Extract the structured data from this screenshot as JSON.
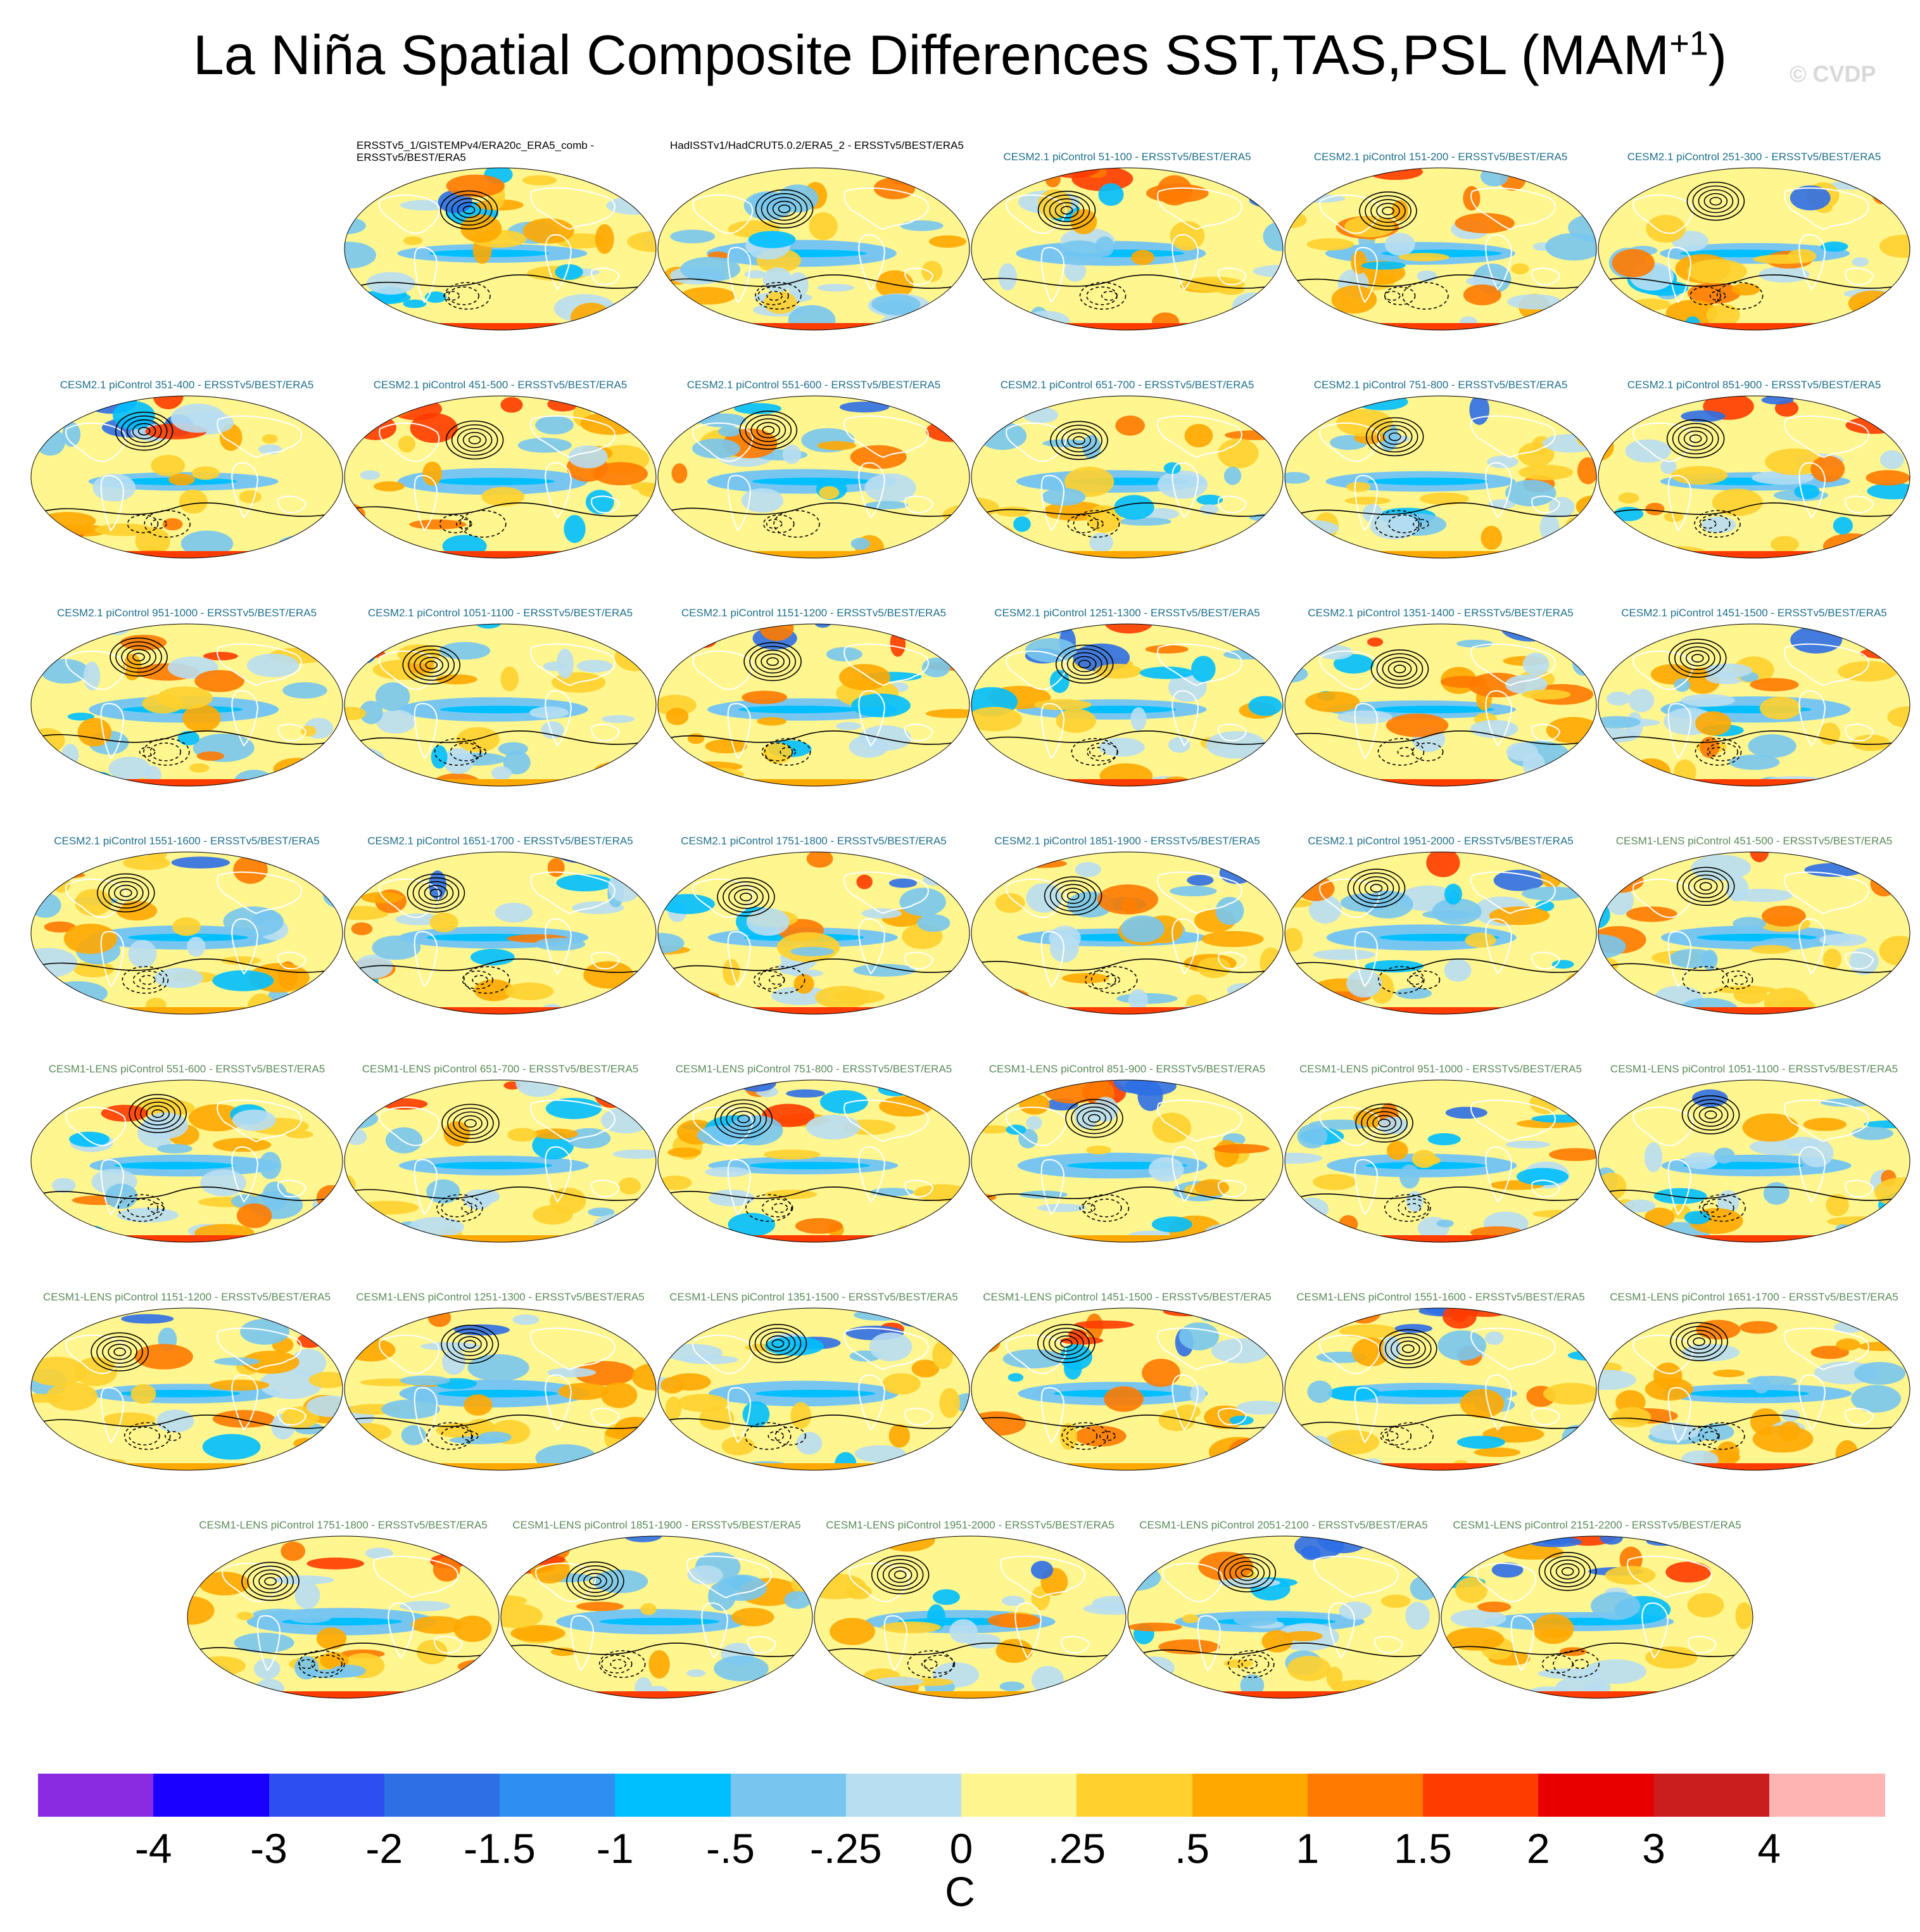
{
  "figure": {
    "title": "La Niña Spatial Composite Differences SST,TAS,PSL (MAM",
    "title_superscript": "+1",
    "title_close": ")",
    "watermark": "© CVDP",
    "unit_label": "C"
  },
  "colors": {
    "obs_title": "#000000",
    "cesm2_title": "#1f6f8b",
    "cesm1_title": "#5a8a5a",
    "land_outline": "#ffffff",
    "contour": "#000000"
  },
  "panels": [
    {
      "title": "ERSSTv5_1/GISTEMPv4/ERA20c_ERA5_comb - ERSSTv5/BEST/ERA5",
      "group": "obs"
    },
    {
      "title": "HadISSTv1/HadCRUT5.0.2/ERA5_2 - ERSSTv5/BEST/ERA5",
      "group": "obs"
    },
    {
      "title": "CESM2.1 piControl 51-100 - ERSSTv5/BEST/ERA5",
      "group": "cesm2"
    },
    {
      "title": "CESM2.1 piControl 151-200 - ERSSTv5/BEST/ERA5",
      "group": "cesm2"
    },
    {
      "title": "CESM2.1 piControl 251-300 - ERSSTv5/BEST/ERA5",
      "group": "cesm2"
    },
    {
      "title": "CESM2.1 piControl 351-400 - ERSSTv5/BEST/ERA5",
      "group": "cesm2"
    },
    {
      "title": "CESM2.1 piControl 451-500 - ERSSTv5/BEST/ERA5",
      "group": "cesm2"
    },
    {
      "title": "CESM2.1 piControl 551-600 - ERSSTv5/BEST/ERA5",
      "group": "cesm2"
    },
    {
      "title": "CESM2.1 piControl 651-700 - ERSSTv5/BEST/ERA5",
      "group": "cesm2"
    },
    {
      "title": "CESM2.1 piControl 751-800 - ERSSTv5/BEST/ERA5",
      "group": "cesm2"
    },
    {
      "title": "CESM2.1 piControl 851-900 - ERSSTv5/BEST/ERA5",
      "group": "cesm2"
    },
    {
      "title": "CESM2.1 piControl 951-1000 - ERSSTv5/BEST/ERA5",
      "group": "cesm2"
    },
    {
      "title": "CESM2.1 piControl 1051-1100 - ERSSTv5/BEST/ERA5",
      "group": "cesm2"
    },
    {
      "title": "CESM2.1 piControl 1151-1200 - ERSSTv5/BEST/ERA5",
      "group": "cesm2"
    },
    {
      "title": "CESM2.1 piControl 1251-1300 - ERSSTv5/BEST/ERA5",
      "group": "cesm2"
    },
    {
      "title": "CESM2.1 piControl 1351-1400 - ERSSTv5/BEST/ERA5",
      "group": "cesm2"
    },
    {
      "title": "CESM2.1 piControl 1451-1500 - ERSSTv5/BEST/ERA5",
      "group": "cesm2"
    },
    {
      "title": "CESM2.1 piControl 1551-1600 - ERSSTv5/BEST/ERA5",
      "group": "cesm2"
    },
    {
      "title": "CESM2.1 piControl 1651-1700 - ERSSTv5/BEST/ERA5",
      "group": "cesm2"
    },
    {
      "title": "CESM2.1 piControl 1751-1800 - ERSSTv5/BEST/ERA5",
      "group": "cesm2"
    },
    {
      "title": "CESM2.1 piControl 1851-1900 - ERSSTv5/BEST/ERA5",
      "group": "cesm2"
    },
    {
      "title": "CESM2.1 piControl 1951-2000 - ERSSTv5/BEST/ERA5",
      "group": "cesm2"
    },
    {
      "title": "CESM1-LENS piControl 451-500 - ERSSTv5/BEST/ERA5",
      "group": "cesm1"
    },
    {
      "title": "CESM1-LENS piControl 551-600 - ERSSTv5/BEST/ERA5",
      "group": "cesm1"
    },
    {
      "title": "CESM1-LENS piControl 651-700 - ERSSTv5/BEST/ERA5",
      "group": "cesm1"
    },
    {
      "title": "CESM1-LENS piControl 751-800 - ERSSTv5/BEST/ERA5",
      "group": "cesm1"
    },
    {
      "title": "CESM1-LENS piControl 851-900 - ERSSTv5/BEST/ERA5",
      "group": "cesm1"
    },
    {
      "title": "CESM1-LENS piControl 951-1000 - ERSSTv5/BEST/ERA5",
      "group": "cesm1"
    },
    {
      "title": "CESM1-LENS piControl 1051-1100 - ERSSTv5/BEST/ERA5",
      "group": "cesm1"
    },
    {
      "title": "CESM1-LENS piControl 1151-1200 - ERSSTv5/BEST/ERA5",
      "group": "cesm1"
    },
    {
      "title": "CESM1-LENS piControl 1251-1300 - ERSSTv5/BEST/ERA5",
      "group": "cesm1"
    },
    {
      "title": "CESM1-LENS piControl 1351-1500 - ERSSTv5/BEST/ERA5",
      "group": "cesm1"
    },
    {
      "title": "CESM1-LENS piControl 1451-1500 - ERSSTv5/BEST/ERA5",
      "group": "cesm1"
    },
    {
      "title": "CESM1-LENS piControl 1551-1600 - ERSSTv5/BEST/ERA5",
      "group": "cesm1"
    },
    {
      "title": "CESM1-LENS piControl 1651-1700 - ERSSTv5/BEST/ERA5",
      "group": "cesm1"
    },
    {
      "title": "CESM1-LENS piControl 1751-1800 - ERSSTv5/BEST/ERA5",
      "group": "cesm1"
    },
    {
      "title": "CESM1-LENS piControl 1851-1900 - ERSSTv5/BEST/ERA5",
      "group": "cesm1"
    },
    {
      "title": "CESM1-LENS piControl 1951-2000 - ERSSTv5/BEST/ERA5",
      "group": "cesm1"
    },
    {
      "title": "CESM1-LENS piControl 2051-2100 - ERSSTv5/BEST/ERA5",
      "group": "cesm1"
    },
    {
      "title": "CESM1-LENS piControl 2151-2200 - ERSSTv5/BEST/ERA5",
      "group": "cesm1"
    }
  ],
  "colorbar": {
    "colors": [
      "#8a2be2",
      "#1a00ff",
      "#2d4ef0",
      "#2f6fe6",
      "#2f8ef2",
      "#00bfff",
      "#78c6f0",
      "#b8def2",
      "#fff68f",
      "#ffd02e",
      "#ffa900",
      "#ff7a00",
      "#ff3c00",
      "#e80000",
      "#c81e1e",
      "#ffb4b4"
    ],
    "tick_labels": [
      "-4",
      "-3",
      "-2",
      "-1.5",
      "-1",
      "-.5",
      "-.25",
      "0",
      ".25",
      ".5",
      "1",
      "1.5",
      "2",
      "3",
      "4"
    ]
  }
}
